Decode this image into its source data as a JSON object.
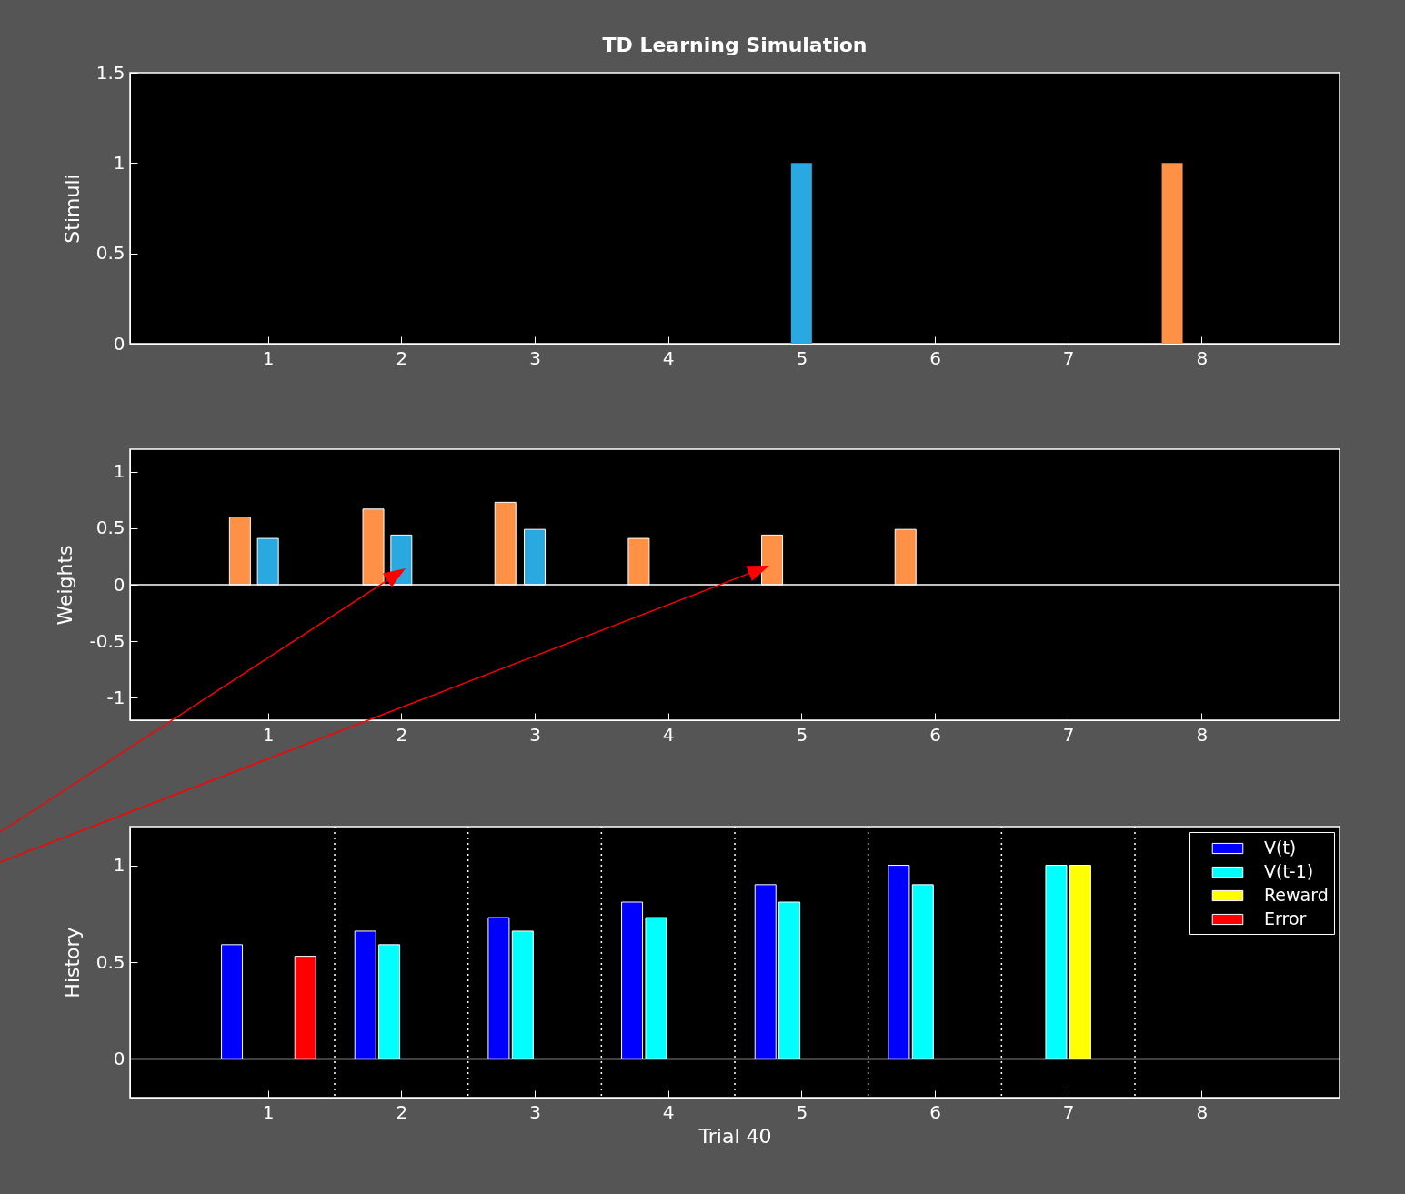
{
  "chart_data": [
    {
      "type": "bar",
      "title": "TD Learning Simulation",
      "ylabel": "Stimuli",
      "xlim": [
        0,
        9
      ],
      "xticks": [
        1,
        2,
        3,
        4,
        5,
        6,
        7,
        8
      ],
      "ylim": [
        0,
        1.5
      ],
      "yticks": [
        0,
        0.5,
        1,
        1.5
      ],
      "legend": false,
      "grid": false,
      "series": [
        {
          "color": "#2aa9e0",
          "x": [
            5
          ],
          "values": [
            1
          ]
        },
        {
          "color": "#ff9147",
          "x": [
            7.78
          ],
          "values": [
            1
          ]
        }
      ]
    },
    {
      "type": "bar",
      "ylabel": "Weights",
      "xlim": [
        0,
        9
      ],
      "xticks": [
        1,
        2,
        3,
        4,
        5,
        6,
        7,
        8
      ],
      "ylim": [
        -1.2,
        1.2
      ],
      "yticks": [
        -1,
        -0.5,
        0,
        0.5,
        1
      ],
      "legend": false,
      "grid": false,
      "ref_lines": [
        {
          "axis": "y",
          "value": 0,
          "color": "#ffffff",
          "line_style": "solid"
        }
      ],
      "series": [
        {
          "color": "#ff9147",
          "x": [
            0.79,
            1.79,
            2.78,
            3.78,
            4.78,
            5.78
          ],
          "values": [
            0.6,
            0.67,
            0.73,
            0.41,
            0.44,
            0.49
          ]
        },
        {
          "color": "#2aa9e0",
          "x": [
            1,
            2,
            3
          ],
          "values": [
            0.41,
            0.44,
            0.49
          ]
        }
      ]
    },
    {
      "type": "bar",
      "xlabel": "Trial 40",
      "ylabel": "History",
      "xlim": [
        0,
        9
      ],
      "xticks": [
        1,
        2,
        3,
        4,
        5,
        6,
        7,
        8
      ],
      "ylim": [
        -0.2,
        1.2
      ],
      "yticks": [
        0,
        0.5,
        1
      ],
      "legend": "top right",
      "grid": false,
      "series": [
        {
          "name": "V(t)",
          "color": "#0000ff",
          "x": [
            0.73,
            1.73,
            2.73,
            3.73,
            4.73,
            5.73
          ],
          "values": [
            0.59,
            0.66,
            0.73,
            0.81,
            0.9,
            1
          ]
        },
        {
          "name": "V(t-1)",
          "color": "#00ffff",
          "x": [
            1.91,
            2.91,
            3.91,
            4.91,
            5.91,
            6.91
          ],
          "values": [
            0.59,
            0.66,
            0.73,
            0.81,
            0.9,
            1
          ]
        },
        {
          "name": "Reward",
          "color": "#ffff00",
          "x": [
            7.09
          ],
          "values": [
            1
          ]
        },
        {
          "name": "Error",
          "color": "#ff0000",
          "x": [
            1.28
          ],
          "values": [
            0.53
          ]
        }
      ],
      "ref_lines": [
        {
          "axis": "y",
          "value": 0,
          "color": "#ffffff",
          "line_style": "solid"
        },
        {
          "axis": "x",
          "value": 1.5,
          "color": "#ffffff",
          "line_style": "dotted"
        },
        {
          "axis": "x",
          "value": 2.5,
          "color": "#ffffff",
          "line_style": "dotted"
        },
        {
          "axis": "x",
          "value": 3.5,
          "color": "#ffffff",
          "line_style": "dotted"
        },
        {
          "axis": "x",
          "value": 4.5,
          "color": "#ffffff",
          "line_style": "dotted"
        },
        {
          "axis": "x",
          "value": 5.5,
          "color": "#ffffff",
          "line_style": "dotted"
        },
        {
          "axis": "x",
          "value": 6.5,
          "color": "#ffffff",
          "line_style": "dotted"
        },
        {
          "axis": "x",
          "value": 7.5,
          "color": "#ffffff",
          "line_style": "dotted"
        }
      ]
    }
  ]
}
